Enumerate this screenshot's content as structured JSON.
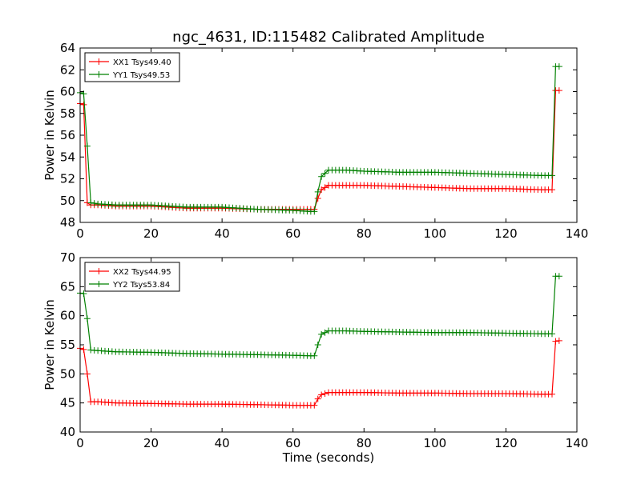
{
  "title": "ngc_4631, ID:115482 Calibrated Amplitude",
  "chart_data": [
    {
      "type": "line",
      "ylabel": "Power in Kelvin",
      "xlabel": "",
      "xlim": [
        0,
        140
      ],
      "ylim": [
        48,
        64
      ],
      "xticks": [
        0,
        20,
        40,
        60,
        80,
        100,
        120,
        140
      ],
      "yticks": [
        48,
        50,
        52,
        54,
        56,
        58,
        60,
        62,
        64
      ],
      "legend_position": "top-left",
      "series": [
        {
          "name": "XX1 Tsys49.40",
          "color": "#ff0000",
          "marker": "+",
          "x": [
            0,
            1,
            2,
            3,
            5,
            10,
            20,
            30,
            40,
            50,
            60,
            65,
            66,
            67,
            68,
            70,
            75,
            80,
            90,
            100,
            110,
            120,
            130,
            133,
            134,
            135
          ],
          "y": [
            58.9,
            58.8,
            49.8,
            49.6,
            49.6,
            49.5,
            49.5,
            49.3,
            49.3,
            49.2,
            49.2,
            49.2,
            49.2,
            50.2,
            51.0,
            51.4,
            51.4,
            51.4,
            51.3,
            51.2,
            51.1,
            51.1,
            51.0,
            51.0,
            60.1,
            60.1
          ]
        },
        {
          "name": "YY1 Tsys49.53",
          "color": "#008000",
          "marker": "+",
          "x": [
            0,
            1,
            2,
            3,
            5,
            10,
            20,
            30,
            40,
            50,
            60,
            65,
            66,
            67,
            68,
            70,
            75,
            80,
            90,
            100,
            110,
            120,
            130,
            133,
            134,
            135
          ],
          "y": [
            59.9,
            59.8,
            55.0,
            49.8,
            49.7,
            49.6,
            49.6,
            49.4,
            49.4,
            49.2,
            49.1,
            49.0,
            49.0,
            50.8,
            52.2,
            52.8,
            52.8,
            52.7,
            52.6,
            52.6,
            52.5,
            52.4,
            52.3,
            52.3,
            62.3,
            62.3
          ]
        }
      ]
    },
    {
      "type": "line",
      "ylabel": "Power in Kelvin",
      "xlabel": "Time (seconds)",
      "xlim": [
        0,
        140
      ],
      "ylim": [
        40,
        70
      ],
      "xticks": [
        0,
        20,
        40,
        60,
        80,
        100,
        120,
        140
      ],
      "yticks": [
        40,
        45,
        50,
        55,
        60,
        65,
        70
      ],
      "legend_position": "top-left",
      "series": [
        {
          "name": "XX2 Tsys44.95",
          "color": "#ff0000",
          "marker": "+",
          "x": [
            0,
            1,
            2,
            3,
            5,
            10,
            20,
            30,
            40,
            50,
            60,
            65,
            66,
            67,
            68,
            70,
            75,
            80,
            90,
            100,
            110,
            120,
            130,
            133,
            134,
            135
          ],
          "y": [
            54.4,
            54.2,
            50.0,
            45.2,
            45.2,
            45.0,
            44.9,
            44.8,
            44.8,
            44.7,
            44.6,
            44.6,
            44.6,
            45.7,
            46.4,
            46.8,
            46.8,
            46.8,
            46.7,
            46.7,
            46.6,
            46.6,
            46.5,
            46.5,
            55.6,
            55.7
          ]
        },
        {
          "name": "YY2 Tsys53.84",
          "color": "#008000",
          "marker": "+",
          "x": [
            0,
            1,
            2,
            3,
            5,
            10,
            20,
            30,
            40,
            50,
            60,
            65,
            66,
            67,
            68,
            70,
            75,
            80,
            90,
            100,
            110,
            120,
            130,
            133,
            134,
            135
          ],
          "y": [
            63.9,
            63.8,
            59.5,
            54.1,
            54.0,
            53.8,
            53.7,
            53.5,
            53.4,
            53.3,
            53.2,
            53.1,
            53.1,
            55.0,
            56.8,
            57.4,
            57.4,
            57.3,
            57.2,
            57.1,
            57.1,
            57.0,
            56.9,
            56.9,
            66.8,
            66.8
          ]
        }
      ]
    }
  ]
}
